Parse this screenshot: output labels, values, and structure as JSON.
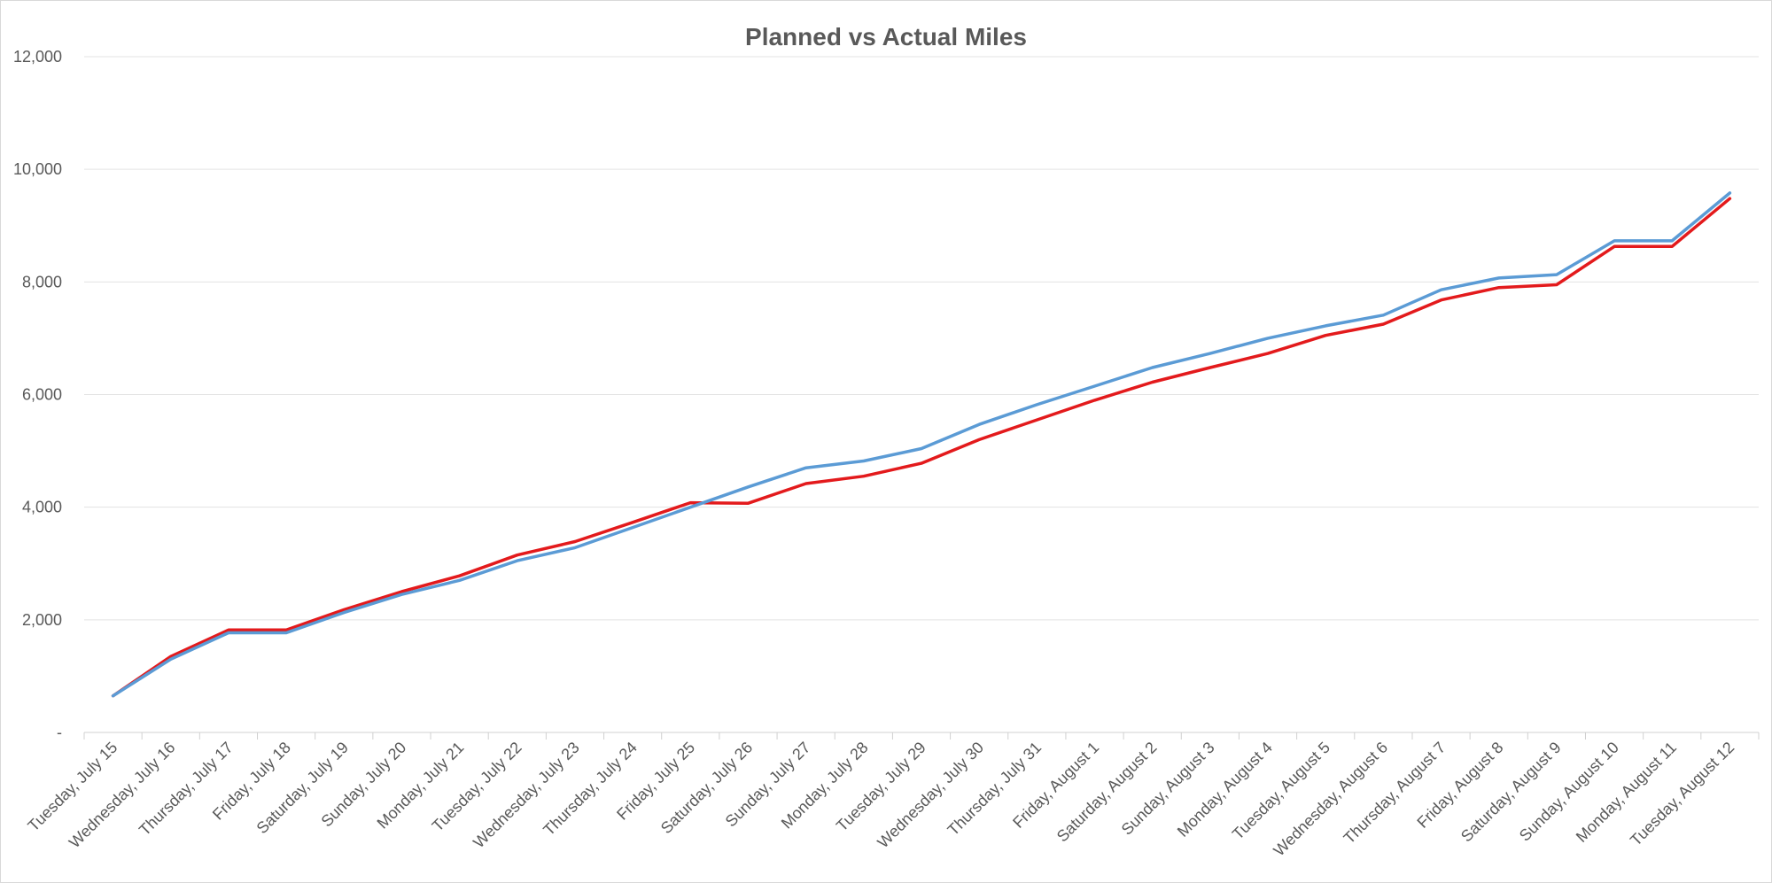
{
  "chart_data": {
    "type": "line",
    "title": "Planned vs Actual Miles",
    "xlabel": "",
    "ylabel": "",
    "ylim": [
      0,
      12000
    ],
    "yticks": [
      0,
      2000,
      4000,
      6000,
      8000,
      10000,
      12000
    ],
    "ytick_labels": [
      "-",
      "2,000",
      "4,000",
      "6,000",
      "8,000",
      "10,000",
      "12,000"
    ],
    "grid": true,
    "legend": "none",
    "categories": [
      "Tuesday, July 15",
      "Wednesday, July 16",
      "Thursday, July 17",
      "Friday, July 18",
      "Saturday, July 19",
      "Sunday, July 20",
      "Monday, July 21",
      "Tuesday, July 22",
      "Wednesday, July 23",
      "Thursday, July 24",
      "Friday, July 25",
      "Saturday, July 26",
      "Sunday, July 27",
      "Monday, July 28",
      "Tuesday, July 29",
      "Wednesday, July 30",
      "Thursday, July 31",
      "Friday, August 1",
      "Saturday, August 2",
      "Sunday, August 3",
      "Monday, August 4",
      "Tuesday, August 5",
      "Wednesday, August 6",
      "Thursday, August 7",
      "Friday, August 8",
      "Saturday, August 9",
      "Sunday, August 10",
      "Monday, August 11",
      "Tuesday, August 12"
    ],
    "series": [
      {
        "color": "#e31a1c",
        "values": [
          650,
          1350,
          1820,
          1820,
          2180,
          2500,
          2780,
          3150,
          3390,
          3730,
          4080,
          4070,
          4420,
          4550,
          4780,
          5200,
          5550,
          5900,
          6220,
          6480,
          6730,
          7050,
          7250,
          7680,
          7900,
          7950,
          8630,
          8630,
          9480
        ]
      },
      {
        "color": "#5b9bd5",
        "values": [
          650,
          1300,
          1770,
          1770,
          2130,
          2450,
          2700,
          3050,
          3280,
          3640,
          4000,
          4360,
          4700,
          4820,
          5040,
          5470,
          5820,
          6150,
          6480,
          6730,
          7000,
          7220,
          7410,
          7860,
          8070,
          8130,
          8730,
          8730,
          9580
        ]
      }
    ]
  }
}
